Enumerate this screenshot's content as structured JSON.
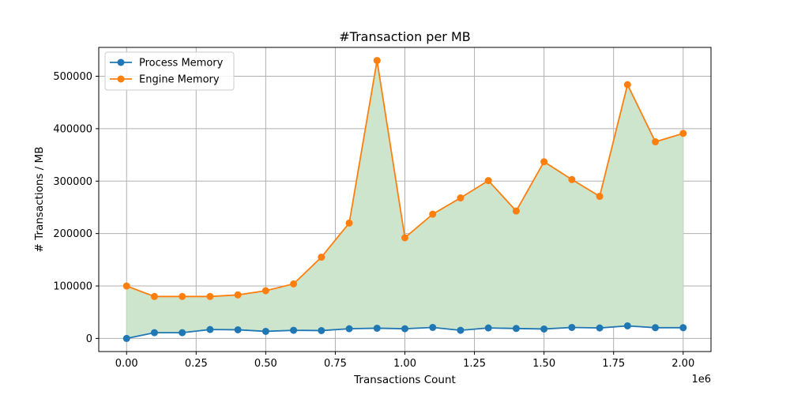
{
  "chart_data": {
    "type": "line",
    "title": "#Transaction per MB",
    "xlabel": "Transactions Count",
    "ylabel": "# Transactions / MB",
    "x_offset_label": "1e6",
    "x": [
      0,
      100000,
      200000,
      300000,
      400000,
      500000,
      600000,
      700000,
      800000,
      900000,
      1000000,
      1100000,
      1200000,
      1300000,
      1400000,
      1500000,
      1600000,
      1700000,
      1800000,
      1900000,
      2000000
    ],
    "series": [
      {
        "name": "Process Memory",
        "color": "#1f77b4",
        "values": [
          0,
          11000,
          11000,
          17000,
          16500,
          13500,
          15500,
          15000,
          18500,
          19500,
          18500,
          21000,
          15500,
          20000,
          19000,
          18000,
          21000,
          20000,
          24000,
          20500,
          20500
        ]
      },
      {
        "name": "Engine Memory",
        "color": "#ff7f0e",
        "values": [
          100000,
          80000,
          80000,
          80000,
          83000,
          91000,
          104000,
          155000,
          220000,
          530000,
          192000,
          237000,
          268000,
          301000,
          243000,
          337000,
          303000,
          271000,
          484000,
          375000,
          391000
        ]
      }
    ],
    "fill_between": {
      "color": "#cde5cd"
    },
    "xlim": [
      -100000,
      2100000
    ],
    "ylim": [
      -25000,
      555000
    ],
    "xticks": [
      0,
      250000,
      500000,
      750000,
      1000000,
      1250000,
      1500000,
      1750000,
      2000000
    ],
    "xtick_labels": [
      "0.00",
      "0.25",
      "0.50",
      "0.75",
      "1.00",
      "1.25",
      "1.50",
      "1.75",
      "2.00"
    ],
    "yticks": [
      0,
      100000,
      200000,
      300000,
      400000,
      500000
    ],
    "ytick_labels": [
      "0",
      "100000",
      "200000",
      "300000",
      "400000",
      "500000"
    ],
    "grid": true,
    "legend": "top-left"
  }
}
